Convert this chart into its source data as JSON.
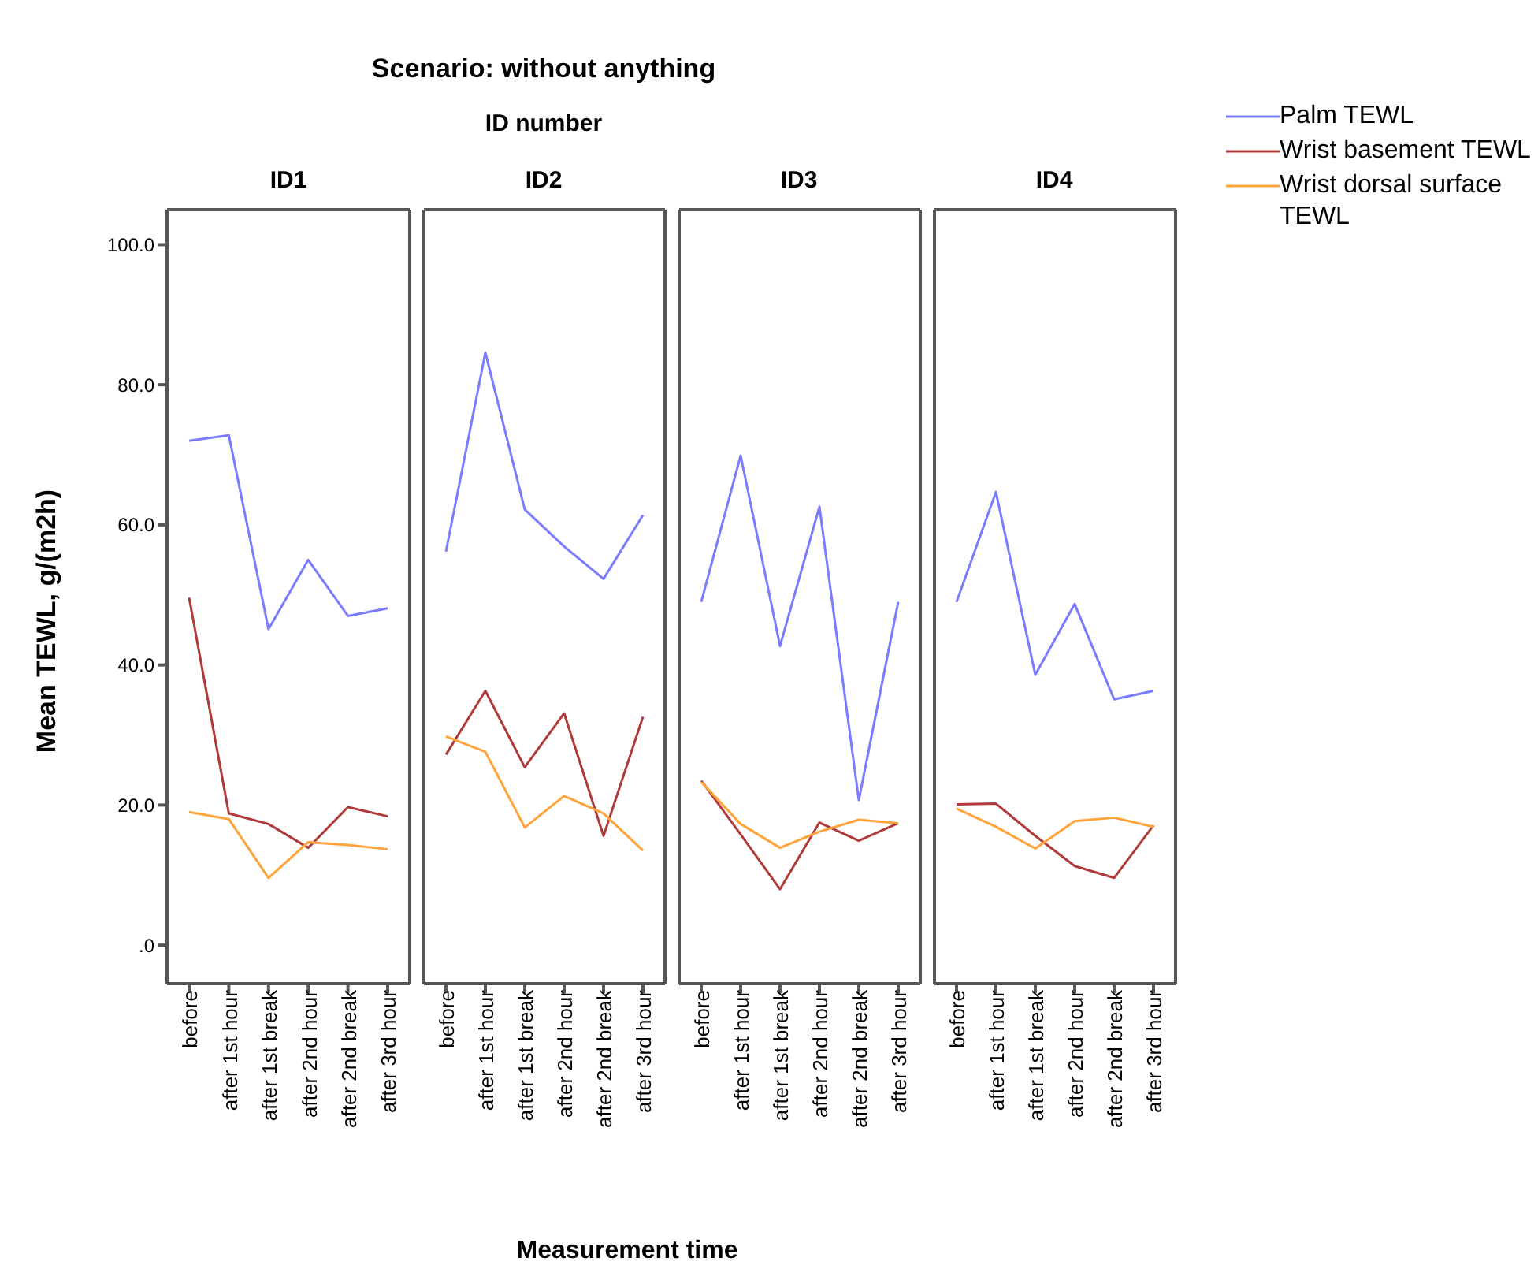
{
  "chart_data": [
    {
      "type": "line",
      "title": "ID1",
      "xlabel": "Measurement time",
      "ylabel": "Mean TEWL, g/(m2h)",
      "legend": "right",
      "categories": [
        "before",
        "after 1st hour",
        "after 1st break",
        "after 2nd hour",
        "after 2nd break",
        "after 3rd hour"
      ],
      "ylim": [
        -5.5,
        105
      ],
      "yticks": [
        {
          "value": 0,
          "label": ".0"
        },
        {
          "value": 20,
          "label": "20.0"
        },
        {
          "value": 40,
          "label": "40.0"
        },
        {
          "value": 60,
          "label": "60.0"
        },
        {
          "value": 80,
          "label": "80.0"
        },
        {
          "value": 100,
          "label": "100.0"
        }
      ],
      "series": [
        {
          "name": "Palm TEWL",
          "color": "#7b7bff",
          "values": [
            72.0,
            72.8,
            45.1,
            55.0,
            47.0,
            48.1
          ]
        },
        {
          "name": "Wrist basement TEWL",
          "color": "#b03a3a",
          "values": [
            49.6,
            18.8,
            17.3,
            13.9,
            19.7,
            18.4
          ]
        },
        {
          "name": "Wrist dorsal surface TEWL",
          "color": "#ffa33a",
          "values": [
            19.0,
            18.0,
            9.6,
            14.7,
            14.3,
            13.7
          ]
        }
      ]
    },
    {
      "type": "line",
      "title": "Scenario: without anything",
      "subtitle": "ID number",
      "annotations": [
        "ID2"
      ],
      "tick_labels": "x",
      "categories": [
        "before",
        "after 1st hour",
        "after 1st break",
        "after 2nd hour",
        "after 2nd break",
        "after 3rd hour"
      ],
      "ylim": [
        -5.5,
        105
      ],
      "series": [
        {
          "color": "#7b7bff",
          "values": [
            56.2,
            84.6,
            62.2,
            56.9,
            52.3,
            61.4
          ]
        },
        {
          "color": "#b03a3a",
          "values": [
            27.2,
            36.3,
            25.4,
            33.1,
            15.6,
            32.6
          ]
        },
        {
          "color": "#ffa33a",
          "values": [
            29.8,
            27.6,
            16.8,
            21.3,
            18.8,
            13.5
          ]
        }
      ]
    },
    {
      "type": "line",
      "title": "ID3",
      "tick_labels": "x",
      "categories": [
        "before",
        "after 1st hour",
        "after 1st break",
        "after 2nd hour",
        "after 2nd break",
        "after 3rd hour"
      ],
      "ylim": [
        -5.5,
        105
      ],
      "series": [
        {
          "color": "#7b7bff",
          "values": [
            49.0,
            69.9,
            42.7,
            62.6,
            20.7,
            49.0
          ]
        },
        {
          "color": "#b03a3a",
          "values": [
            23.5,
            15.8,
            8.0,
            17.5,
            14.9,
            17.4
          ]
        },
        {
          "color": "#ffa33a",
          "values": [
            23.3,
            17.3,
            13.9,
            16.2,
            17.9,
            17.4
          ]
        }
      ]
    },
    {
      "type": "line",
      "title": "ID4",
      "tick_labels": "x",
      "categories": [
        "before",
        "after 1st hour",
        "after 1st break",
        "after 2nd hour",
        "after 2nd break",
        "after 3rd hour"
      ],
      "ylim": [
        -5.5,
        105
      ],
      "series": [
        {
          "color": "#7b7bff",
          "values": [
            49.0,
            64.7,
            38.6,
            48.7,
            35.1,
            36.3
          ]
        },
        {
          "color": "#b03a3a",
          "values": [
            20.1,
            20.2,
            15.6,
            11.3,
            9.6,
            17.1
          ]
        },
        {
          "color": "#ffa33a",
          "values": [
            19.5,
            16.9,
            13.8,
            17.7,
            18.2,
            16.9
          ]
        }
      ]
    }
  ]
}
